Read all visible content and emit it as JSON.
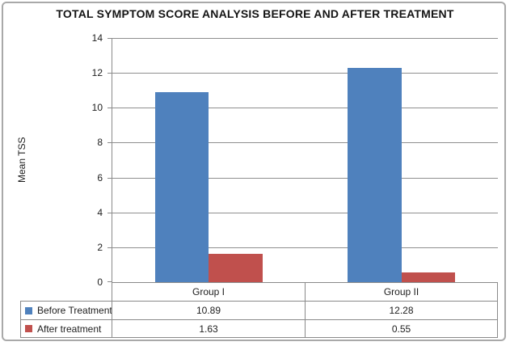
{
  "window": {
    "background": "#ffffff",
    "frame_border_color": "#a9a9a9"
  },
  "chart_data": {
    "type": "bar",
    "title": "TOTAL SYMPTOM SCORE ANALYSIS BEFORE AND AFTER TREATMENT",
    "xlabel": "",
    "ylabel": "Mean TSS",
    "categories": [
      "Group I",
      "Group II"
    ],
    "series": [
      {
        "name": "Before Treatment",
        "color": "#4F81BD",
        "values": [
          10.89,
          12.28
        ],
        "display_values": [
          "10.89",
          "12.28"
        ]
      },
      {
        "name": "After treatment",
        "color": "#C0504D",
        "values": [
          1.63,
          0.55
        ],
        "display_values": [
          "1.63",
          "0.55"
        ]
      }
    ],
    "ylim": [
      0,
      14
    ],
    "yticks": [
      0,
      2,
      4,
      6,
      8,
      10,
      12,
      14
    ],
    "grid": true,
    "gridline_color": "#8f8f8f",
    "axis_color": "#8a8a8a",
    "legend_position": "data-table-left",
    "data_table_shown": true
  }
}
